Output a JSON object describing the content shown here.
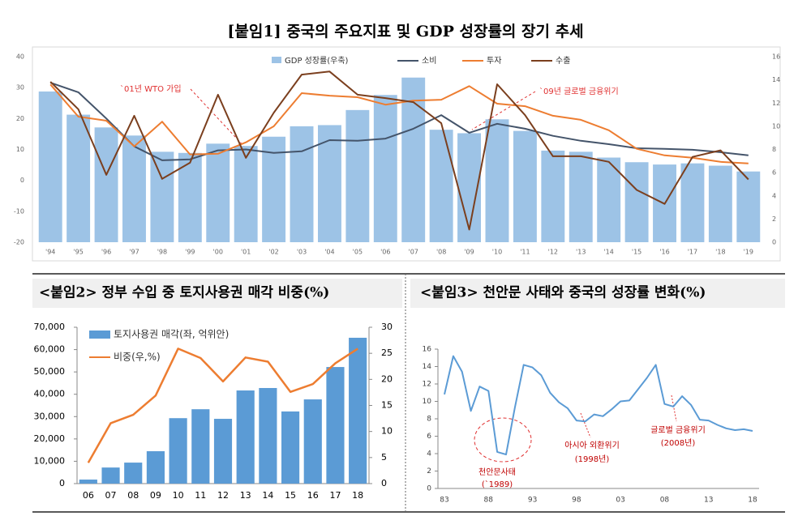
{
  "chart_data": [
    {
      "type": "combo",
      "title": "[붙임1] 중국의 주요지표 및 GDP 성장률의 장기 추세",
      "categories": [
        "'94",
        "'95",
        "'96",
        "'97",
        "'98",
        "'99",
        "'00",
        "'01",
        "'02",
        "'03",
        "'04",
        "'05",
        "'06",
        "'07",
        "'08",
        "'09",
        "'10",
        "'11",
        "'12",
        "'13",
        "'14",
        "'15",
        "'16",
        "'17",
        "'18",
        "'19"
      ],
      "series": [
        {
          "name": "GDP 성장률(우축)",
          "type": "bar",
          "axis": "y2",
          "color": "#9dc3e6",
          "values": [
            13.0,
            11.0,
            9.9,
            9.2,
            7.8,
            7.7,
            8.5,
            8.3,
            9.1,
            10.0,
            10.1,
            11.4,
            12.7,
            14.2,
            9.7,
            9.4,
            10.6,
            9.6,
            7.9,
            7.8,
            7.3,
            6.9,
            6.7,
            6.8,
            6.6,
            6.1
          ]
        },
        {
          "name": "소비",
          "type": "line",
          "color": "#44546a",
          "values": [
            31.6,
            28.5,
            20.0,
            11.0,
            6.5,
            6.8,
            9.7,
            10.0,
            8.9,
            9.4,
            13.0,
            12.8,
            13.5,
            16.7,
            21.1,
            15.4,
            18.3,
            16.7,
            14.4,
            12.8,
            11.7,
            10.4,
            10.2,
            9.9,
            9.1,
            8.1
          ]
        },
        {
          "name": "투자",
          "type": "line",
          "color": "#ed7d31",
          "values": [
            31.0,
            20.6,
            19.3,
            11.0,
            19.0,
            8.4,
            8.6,
            12.3,
            17.5,
            28.2,
            27.4,
            26.9,
            24.5,
            25.8,
            26.1,
            30.5,
            24.8,
            24.0,
            20.9,
            19.6,
            16.2,
            10.2,
            8.1,
            7.3,
            6.0,
            5.5
          ]
        },
        {
          "name": "수출",
          "type": "line",
          "color": "#7b3f1e",
          "values": [
            31.9,
            23.0,
            1.8,
            20.9,
            0.5,
            5.7,
            27.7,
            7.3,
            21.9,
            34.2,
            35.2,
            27.7,
            26.6,
            25.3,
            18.5,
            -15.9,
            31.1,
            21.1,
            7.8,
            7.8,
            6.0,
            -3.1,
            -7.6,
            7.6,
            9.7,
            0.3
          ]
        }
      ],
      "ylim": [
        -20,
        40
      ],
      "yticks": [
        -20,
        -10,
        0,
        10,
        20,
        30,
        40
      ],
      "y2lim": [
        0,
        16
      ],
      "y2ticks": [
        0,
        2,
        4,
        6,
        8,
        10,
        12,
        14,
        16
      ],
      "annotations": [
        "`01년 WTO 가입",
        "`09년 글로벌 금융위기"
      ],
      "legend": "top"
    },
    {
      "type": "combo",
      "title": "<붙임2>  정부 수입 중 토지사용권 매각 비중(%)",
      "categories": [
        "06",
        "07",
        "08",
        "09",
        "10",
        "11",
        "12",
        "13",
        "14",
        "15",
        "16",
        "17",
        "18"
      ],
      "series": [
        {
          "name": "토지사용권 매각(좌, 억위안)",
          "type": "bar",
          "color": "#5b9bd5",
          "values": [
            1800,
            7200,
            9400,
            14500,
            29300,
            33300,
            29000,
            41700,
            42800,
            32300,
            37700,
            52200,
            65300
          ]
        },
        {
          "name": "비중(우,%)",
          "type": "line",
          "axis": "y2",
          "color": "#ed7d31",
          "values": [
            4.0,
            11.6,
            13.2,
            16.9,
            25.9,
            24.1,
            19.6,
            24.2,
            23.4,
            17.6,
            19.1,
            23.1,
            25.9
          ]
        }
      ],
      "ylim": [
        0,
        70000
      ],
      "yticks": [
        0,
        {
          "value": 10000,
          "label": "10,000"
        },
        {
          "value": 20000,
          "label": "20,000"
        },
        {
          "value": 30000,
          "label": "30,000"
        },
        {
          "value": 40000,
          "label": "40,000"
        },
        {
          "value": 50000,
          "label": "50,000"
        },
        {
          "value": 60000,
          "label": "60,000"
        },
        {
          "value": 70000,
          "label": "70,000"
        }
      ],
      "y2lim": [
        0,
        30
      ],
      "y2ticks": [
        0,
        5,
        10,
        15,
        20,
        25,
        30
      ],
      "legend": "top-left"
    },
    {
      "type": "line",
      "title": "<붙임3> 천안문 사태와 중국의 성장률 변화(%)",
      "categories": [
        "83",
        null,
        null,
        null,
        null,
        "88",
        null,
        null,
        null,
        null,
        "93",
        null,
        null,
        null,
        null,
        "98",
        null,
        null,
        null,
        null,
        "03",
        null,
        null,
        null,
        null,
        "08",
        null,
        null,
        null,
        null,
        "13",
        null,
        null,
        null,
        null,
        "18"
      ],
      "values": [
        10.8,
        15.2,
        13.4,
        8.9,
        11.7,
        11.2,
        4.2,
        3.9,
        9.3,
        14.2,
        13.9,
        13.0,
        11.0,
        9.9,
        9.2,
        7.8,
        7.7,
        8.5,
        8.3,
        9.1,
        10.0,
        10.1,
        11.4,
        12.7,
        14.2,
        9.7,
        9.4,
        10.6,
        9.6,
        7.9,
        7.8,
        7.3,
        6.9,
        6.7,
        6.8,
        6.6
      ],
      "color": "#5b9bd5",
      "ylim": [
        0,
        16
      ],
      "yticks": [
        0,
        2,
        4,
        6,
        8,
        10,
        12,
        14,
        16
      ],
      "annotations": [
        "천안문사태",
        "(`1989)",
        "아시아 외환위기",
        "(1998년)",
        "글로벌 금융위기",
        "(2008년)"
      ]
    }
  ]
}
